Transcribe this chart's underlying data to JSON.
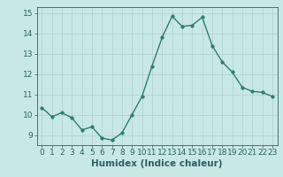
{
  "x": [
    0,
    1,
    2,
    3,
    4,
    5,
    6,
    7,
    8,
    9,
    10,
    11,
    12,
    13,
    14,
    15,
    16,
    17,
    18,
    19,
    20,
    21,
    22,
    23
  ],
  "y": [
    10.35,
    9.9,
    10.1,
    9.85,
    9.25,
    9.4,
    8.85,
    8.75,
    9.1,
    10.0,
    10.9,
    12.4,
    13.8,
    14.85,
    14.35,
    14.4,
    14.8,
    13.4,
    12.6,
    12.1,
    11.35,
    11.15,
    11.1,
    10.9
  ],
  "line_color": "#2e7d6e",
  "marker_color": "#2e7d6e",
  "bg_color": "#c8e8e5",
  "grid_color": "#b0d0cc",
  "axis_color": "#2e6060",
  "xlabel": "Humidex (Indice chaleur)",
  "xlim": [
    -0.5,
    23.5
  ],
  "ylim": [
    8.5,
    15.3
  ],
  "yticks": [
    9,
    10,
    11,
    12,
    13,
    14,
    15
  ],
  "xticks": [
    0,
    1,
    2,
    3,
    4,
    5,
    6,
    7,
    8,
    9,
    10,
    11,
    12,
    13,
    14,
    15,
    16,
    17,
    18,
    19,
    20,
    21,
    22,
    23
  ],
  "xlabel_fontsize": 7.5,
  "tick_fontsize": 6.5,
  "marker_size": 2.5,
  "linewidth": 1.0
}
